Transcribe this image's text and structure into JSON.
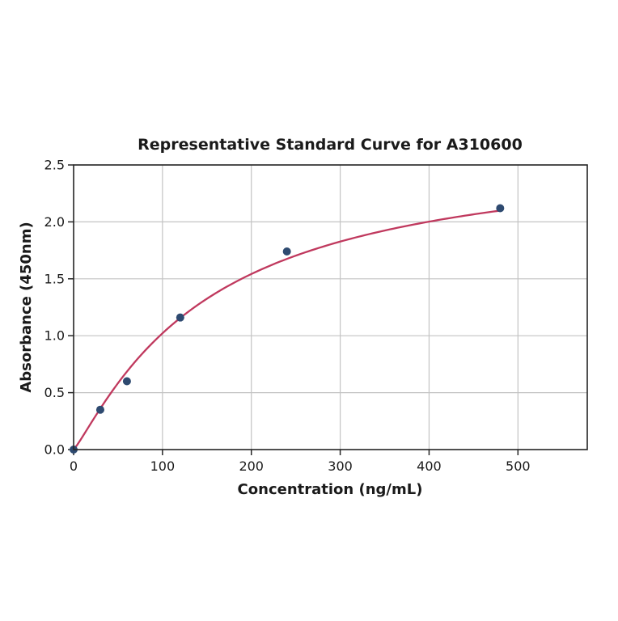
{
  "chart_data": {
    "type": "scatter",
    "title": "Representative Standard Curve for A310600",
    "xlabel": "Concentration (ng/mL)",
    "ylabel": "Absorbance (450nm)",
    "points": {
      "x": [
        0,
        30,
        60,
        120,
        240,
        480
      ],
      "y": [
        0,
        0.35,
        0.6,
        1.16,
        1.74,
        2.12
      ]
    },
    "fit_curve": {
      "model": "4pl",
      "params": {
        "a": 0,
        "b": 1.15,
        "c": 150,
        "d": 2.65
      },
      "x_range": [
        0,
        480
      ]
    },
    "x_ticks": {
      "values": [
        0,
        100,
        200,
        300,
        400,
        500
      ],
      "labels": [
        "0",
        "100",
        "200",
        "300",
        "400",
        "500"
      ]
    },
    "y_ticks": {
      "values": [
        0,
        0.5,
        1,
        1.5,
        2,
        2.5
      ],
      "labels": [
        "0.0",
        "0.5",
        "1.0",
        "1.5",
        "2.0",
        "2.5"
      ]
    },
    "xlim": [
      0,
      578
    ],
    "ylim": [
      0,
      2.5
    ],
    "grid": true,
    "legend": false,
    "colors": {
      "curve": "#c0395e",
      "marker": "#2e4a70",
      "grid": "#c3c3c3",
      "axis": "#252525",
      "text": "#1a1a1a",
      "background": "#ffffff"
    }
  }
}
